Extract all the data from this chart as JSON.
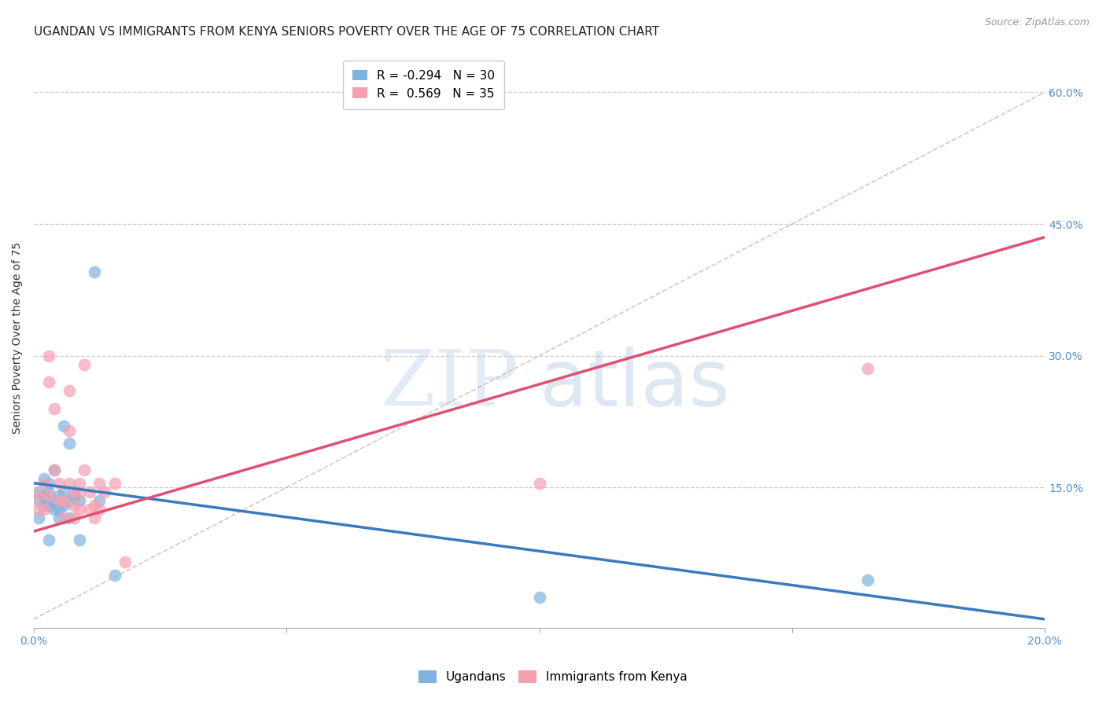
{
  "title": "UGANDAN VS IMMIGRANTS FROM KENYA SENIORS POVERTY OVER THE AGE OF 75 CORRELATION CHART",
  "source": "Source: ZipAtlas.com",
  "ylabel": "Seniors Poverty Over the Age of 75",
  "xlim": [
    0.0,
    0.2
  ],
  "ylim": [
    -0.01,
    0.65
  ],
  "yticks": [
    0.0,
    0.15,
    0.3,
    0.45,
    0.6
  ],
  "ytick_labels": [
    "",
    "15.0%",
    "30.0%",
    "45.0%",
    "60.0%"
  ],
  "xticks": [
    0.0,
    0.05,
    0.1,
    0.15,
    0.2
  ],
  "xtick_labels": [
    "0.0%",
    "",
    "",
    "",
    "20.0%"
  ],
  "ugandan_R": -0.294,
  "ugandan_N": 30,
  "kenya_R": 0.569,
  "kenya_N": 35,
  "ugandan_color": "#7eb3e0",
  "kenya_color": "#f4a0b0",
  "ugandan_line_color": "#3a7abf",
  "kenya_line_color": "#e05070",
  "ugandan_line_x": [
    0.0,
    0.2
  ],
  "ugandan_line_y": [
    0.155,
    0.0
  ],
  "kenya_line_x": [
    0.0,
    0.2
  ],
  "kenya_line_y": [
    0.1,
    0.435
  ],
  "ref_line_x": [
    0.0,
    0.2
  ],
  "ref_line_y": [
    0.0,
    0.6
  ],
  "ugandans_x": [
    0.001,
    0.001,
    0.001,
    0.002,
    0.002,
    0.002,
    0.003,
    0.003,
    0.003,
    0.003,
    0.004,
    0.004,
    0.004,
    0.005,
    0.005,
    0.005,
    0.006,
    0.006,
    0.006,
    0.007,
    0.007,
    0.007,
    0.008,
    0.009,
    0.009,
    0.012,
    0.013,
    0.016,
    0.1,
    0.165
  ],
  "ugandans_y": [
    0.145,
    0.135,
    0.115,
    0.16,
    0.14,
    0.13,
    0.155,
    0.145,
    0.13,
    0.09,
    0.17,
    0.135,
    0.125,
    0.14,
    0.125,
    0.115,
    0.22,
    0.145,
    0.13,
    0.2,
    0.135,
    0.115,
    0.14,
    0.135,
    0.09,
    0.395,
    0.135,
    0.05,
    0.025,
    0.045
  ],
  "kenya_x": [
    0.001,
    0.001,
    0.002,
    0.002,
    0.003,
    0.003,
    0.003,
    0.004,
    0.004,
    0.005,
    0.005,
    0.006,
    0.006,
    0.007,
    0.007,
    0.007,
    0.008,
    0.008,
    0.008,
    0.009,
    0.009,
    0.009,
    0.01,
    0.01,
    0.011,
    0.011,
    0.012,
    0.012,
    0.013,
    0.013,
    0.014,
    0.016,
    0.018,
    0.1,
    0.165
  ],
  "kenya_y": [
    0.14,
    0.125,
    0.155,
    0.125,
    0.3,
    0.27,
    0.14,
    0.24,
    0.17,
    0.155,
    0.135,
    0.135,
    0.115,
    0.26,
    0.215,
    0.155,
    0.145,
    0.13,
    0.115,
    0.155,
    0.145,
    0.125,
    0.29,
    0.17,
    0.145,
    0.125,
    0.13,
    0.115,
    0.155,
    0.125,
    0.145,
    0.155,
    0.065,
    0.155,
    0.285
  ],
  "title_fontsize": 11,
  "axis_label_fontsize": 10,
  "tick_fontsize": 10,
  "legend_fontsize": 11
}
